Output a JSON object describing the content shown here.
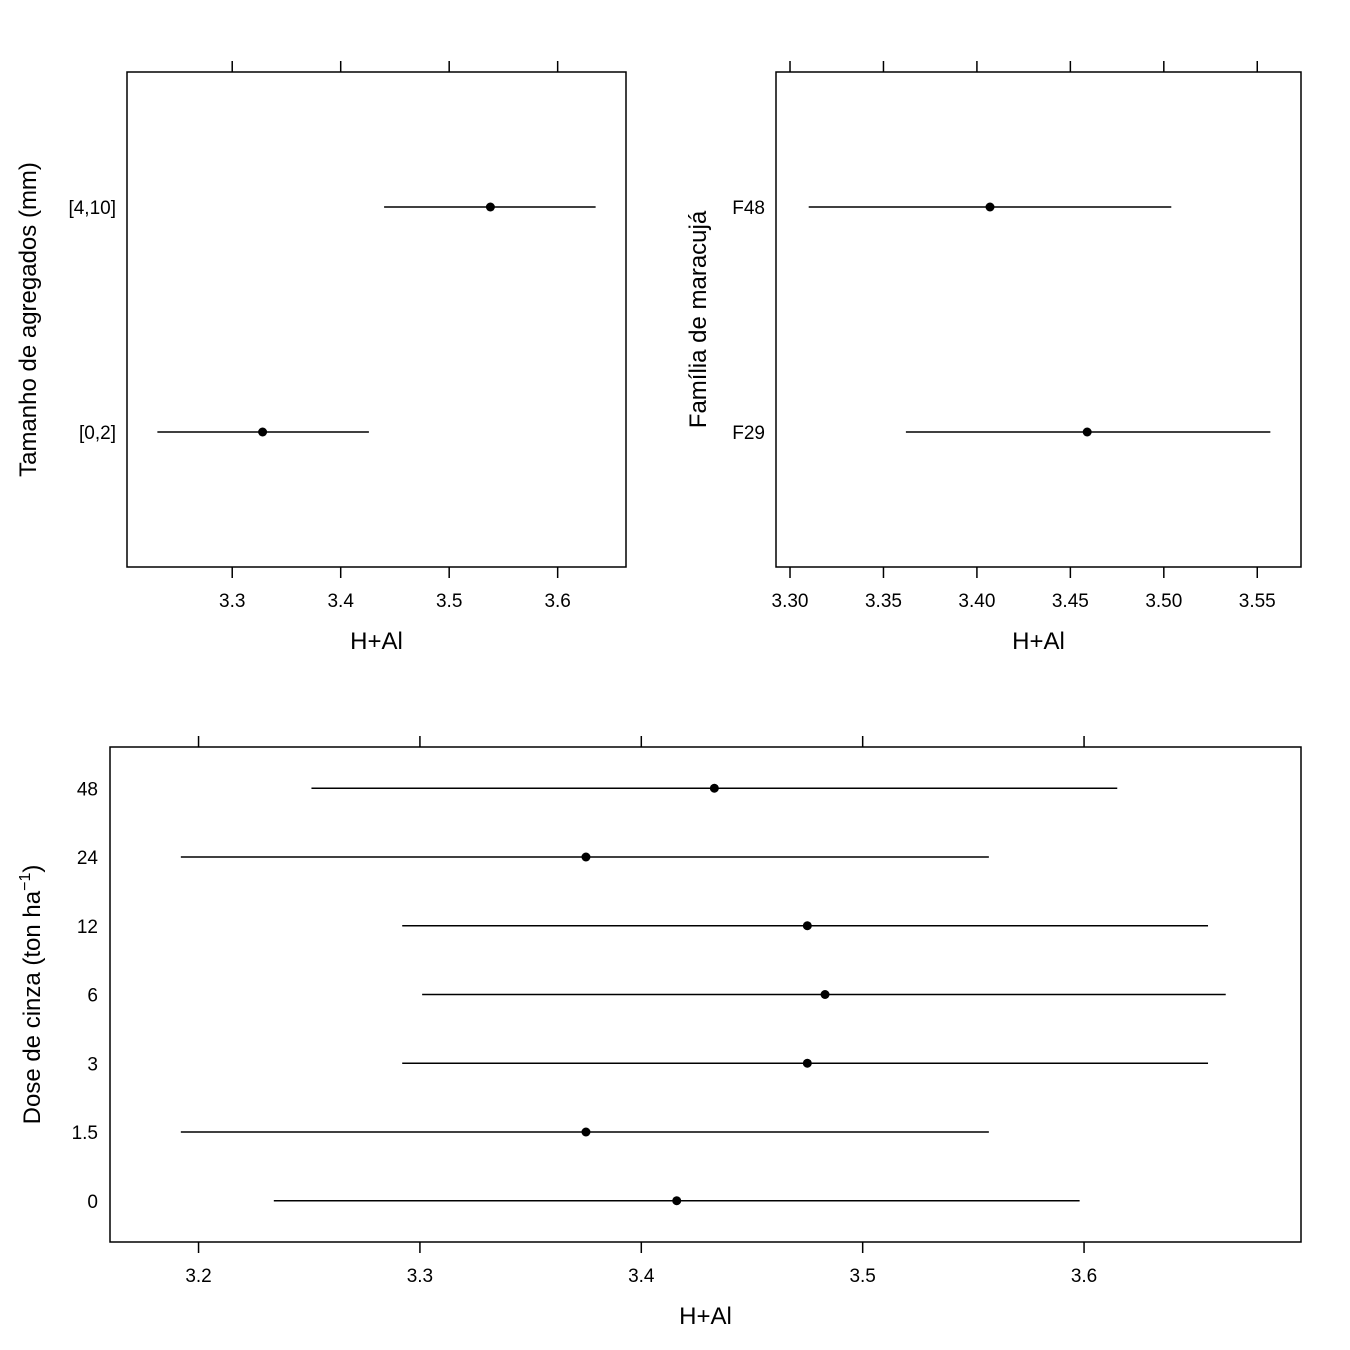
{
  "chart_data": [
    {
      "type": "interval",
      "ylabel": "Tamanho de agregados (mm)",
      "xlabel": "H+Al",
      "x_ticks": [
        "3.3",
        "3.4",
        "3.5",
        "3.6"
      ],
      "x_tick_values": [
        3.3,
        3.4,
        3.5,
        3.6
      ],
      "xlim": [
        3.203,
        3.663
      ],
      "categories": [
        "[0,2]",
        "[4,10]"
      ],
      "estimates": [
        3.328,
        3.538
      ],
      "lower": [
        3.231,
        3.44
      ],
      "upper": [
        3.426,
        3.635
      ],
      "grid": false,
      "top_ticks": true
    },
    {
      "type": "interval",
      "ylabel": "Família de maracujá",
      "xlabel": "H+Al",
      "x_ticks": [
        "3.30",
        "3.35",
        "3.40",
        "3.45",
        "3.50",
        "3.55"
      ],
      "x_tick_values": [
        3.3,
        3.35,
        3.4,
        3.45,
        3.5,
        3.55
      ],
      "xlim": [
        3.2925,
        3.5734
      ],
      "categories": [
        "F29",
        "F48"
      ],
      "estimates": [
        3.459,
        3.407
      ],
      "lower": [
        3.362,
        3.31
      ],
      "upper": [
        3.557,
        3.504
      ],
      "grid": false,
      "top_ticks": true
    },
    {
      "type": "interval",
      "ylabel": "Dose de cinza (ton ha",
      "ylabel_sup": "−1",
      "ylabel_close": ")",
      "xlabel": "H+Al",
      "x_ticks": [
        "3.2",
        "3.3",
        "3.4",
        "3.5",
        "3.6"
      ],
      "x_tick_values": [
        3.2,
        3.3,
        3.4,
        3.5,
        3.6
      ],
      "xlim": [
        3.16,
        3.698
      ],
      "categories": [
        "0",
        "1.5",
        "3",
        "6",
        "12",
        "24",
        "48"
      ],
      "estimates": [
        3.416,
        3.375,
        3.475,
        3.483,
        3.475,
        3.375,
        3.433
      ],
      "lower": [
        3.234,
        3.192,
        3.292,
        3.301,
        3.292,
        3.192,
        3.251
      ],
      "upper": [
        3.598,
        3.557,
        3.656,
        3.664,
        3.656,
        3.557,
        3.615
      ],
      "grid": false,
      "top_ticks": true
    }
  ]
}
